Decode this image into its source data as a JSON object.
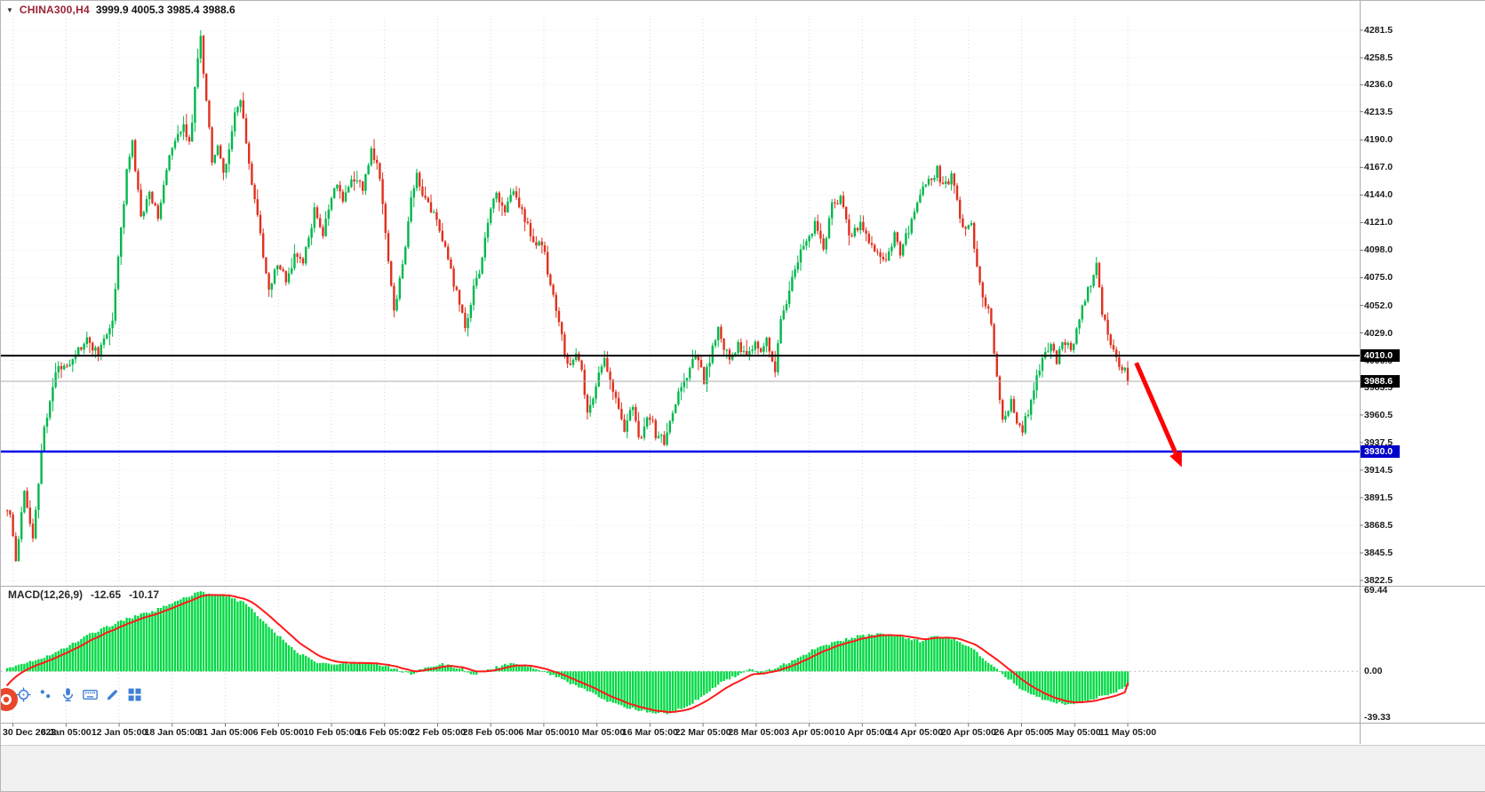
{
  "header": {
    "dropdown_glyph": "▼",
    "symbol_label": "CHINA300,H4",
    "ohlc_text": "3999.9 4005.3 3985.4 3988.6"
  },
  "macd_panel": {
    "label": "MACD(12,26,9)",
    "macd_value": "-12.65",
    "signal_value": "-10.17"
  },
  "colors": {
    "up": "#00b84c",
    "down": "#e0311f",
    "hist": "#00d944",
    "signal": "#ff1a1a",
    "grid": "#d8d8d8",
    "grid_h": "#ededed",
    "axis_text": "#1c1c1c",
    "arrow": "#ff0000",
    "icon_blue": "#3f7fd6",
    "logo_orange": "#e8472b",
    "badge_black": "#000000",
    "badge_blue": "#0000cc"
  },
  "toolbar": {
    "icons": [
      "crosshair-icon",
      "dots-icon",
      "microphone-icon",
      "keyboard-icon",
      "marker-icon",
      "apps-grid-icon",
      "app-logo-icon"
    ]
  },
  "chart_data": {
    "type": "candlestick",
    "title": "CHINA300,H4",
    "symbol": "CHINA300",
    "timeframe": "H4",
    "ohlc_current": {
      "open": 3999.9,
      "high": 4005.3,
      "low": 3985.4,
      "close": 3988.6
    },
    "y_range": [
      3822.5,
      4281.5
    ],
    "y_ticks": [
      4281.5,
      4258.5,
      4236.0,
      4213.5,
      4190.0,
      4167.0,
      4144.0,
      4121.0,
      4098.0,
      4075.0,
      4052.0,
      4029.0,
      4006.0,
      3983.5,
      3960.5,
      3937.5,
      3914.5,
      3891.5,
      3868.5,
      3845.5,
      3822.5
    ],
    "x_labels": [
      "30 Dec 2022",
      "6 Jan 05:00",
      "12 Jan 05:00",
      "18 Jan 05:00",
      "31 Jan 05:00",
      "6 Feb 05:00",
      "10 Feb 05:00",
      "16 Feb 05:00",
      "22 Feb 05:00",
      "28 Feb 05:00",
      "6 Mar 05:00",
      "10 Mar 05:00",
      "16 Mar 05:00",
      "22 Mar 05:00",
      "28 Mar 05:00",
      "3 Apr 05:00",
      "10 Apr 05:00",
      "14 Apr 05:00",
      "20 Apr 05:00",
      "26 Apr 05:00",
      "5 May 05:00",
      "11 May 05:00"
    ],
    "bars_total": 395,
    "price_anchors": [
      [
        1,
        3880
      ],
      [
        3,
        3840
      ],
      [
        6,
        3900
      ],
      [
        9,
        3858
      ],
      [
        13,
        3950
      ],
      [
        17,
        3996
      ],
      [
        22,
        4006
      ],
      [
        28,
        4022
      ],
      [
        32,
        4012
      ],
      [
        37,
        4040
      ],
      [
        42,
        4165
      ],
      [
        44,
        4186
      ],
      [
        47,
        4125
      ],
      [
        50,
        4146
      ],
      [
        53,
        4128
      ],
      [
        57,
        4175
      ],
      [
        62,
        4205
      ],
      [
        64,
        4185
      ],
      [
        68,
        4278
      ],
      [
        69,
        4248
      ],
      [
        72,
        4175
      ],
      [
        74,
        4186
      ],
      [
        76,
        4160
      ],
      [
        80,
        4210
      ],
      [
        82,
        4222
      ],
      [
        85,
        4170
      ],
      [
        89,
        4110
      ],
      [
        92,
        4062
      ],
      [
        95,
        4088
      ],
      [
        98,
        4072
      ],
      [
        101,
        4092
      ],
      [
        104,
        4088
      ],
      [
        108,
        4130
      ],
      [
        111,
        4112
      ],
      [
        114,
        4142
      ],
      [
        116,
        4152
      ],
      [
        118,
        4138
      ],
      [
        121,
        4158
      ],
      [
        125,
        4150
      ],
      [
        128,
        4182
      ],
      [
        131,
        4160
      ],
      [
        133,
        4110
      ],
      [
        136,
        4048
      ],
      [
        139,
        4085
      ],
      [
        142,
        4140
      ],
      [
        144,
        4162
      ],
      [
        147,
        4140
      ],
      [
        151,
        4125
      ],
      [
        154,
        4098
      ],
      [
        158,
        4062
      ],
      [
        161,
        4032
      ],
      [
        164,
        4065
      ],
      [
        167,
        4090
      ],
      [
        170,
        4135
      ],
      [
        172,
        4145
      ],
      [
        175,
        4130
      ],
      [
        177,
        4148
      ],
      [
        179,
        4140
      ],
      [
        182,
        4125
      ],
      [
        186,
        4098
      ],
      [
        188,
        4105
      ],
      [
        190,
        4080
      ],
      [
        192,
        4060
      ],
      [
        195,
        4025
      ],
      [
        197,
        4000
      ],
      [
        200,
        4015
      ],
      [
        202,
        3995
      ],
      [
        204,
        3960
      ],
      [
        207,
        3985
      ],
      [
        210,
        4010
      ],
      [
        212,
        3990
      ],
      [
        215,
        3965
      ],
      [
        217,
        3950
      ],
      [
        220,
        3970
      ],
      [
        222,
        3940
      ],
      [
        226,
        3960
      ],
      [
        228,
        3945
      ],
      [
        231,
        3938
      ],
      [
        234,
        3965
      ],
      [
        237,
        3985
      ],
      [
        239,
        3995
      ],
      [
        242,
        4010
      ],
      [
        245,
        3990
      ],
      [
        248,
        4015
      ],
      [
        250,
        4030
      ],
      [
        254,
        4005
      ],
      [
        257,
        4018
      ],
      [
        260,
        4008
      ],
      [
        263,
        4022
      ],
      [
        265,
        4012
      ],
      [
        267,
        4025
      ],
      [
        270,
        4000
      ],
      [
        272,
        4040
      ],
      [
        275,
        4065
      ],
      [
        278,
        4090
      ],
      [
        281,
        4105
      ],
      [
        284,
        4120
      ],
      [
        287,
        4100
      ],
      [
        290,
        4135
      ],
      [
        293,
        4140
      ],
      [
        296,
        4110
      ],
      [
        300,
        4120
      ],
      [
        303,
        4105
      ],
      [
        306,
        4095
      ],
      [
        309,
        4090
      ],
      [
        312,
        4110
      ],
      [
        314,
        4095
      ],
      [
        317,
        4115
      ],
      [
        320,
        4140
      ],
      [
        324,
        4155
      ],
      [
        327,
        4165
      ],
      [
        329,
        4150
      ],
      [
        332,
        4160
      ],
      [
        334,
        4140
      ],
      [
        336,
        4115
      ],
      [
        339,
        4120
      ],
      [
        341,
        4085
      ],
      [
        343,
        4060
      ],
      [
        346,
        4040
      ],
      [
        348,
        3990
      ],
      [
        350,
        3955
      ],
      [
        353,
        3970
      ],
      [
        355,
        3955
      ],
      [
        357,
        3948
      ],
      [
        360,
        3972
      ],
      [
        362,
        3990
      ],
      [
        364,
        4010
      ],
      [
        367,
        4020
      ],
      [
        369,
        4005
      ],
      [
        371,
        4025
      ],
      [
        374,
        4015
      ],
      [
        376,
        4030
      ],
      [
        378,
        4050
      ],
      [
        381,
        4070
      ],
      [
        383,
        4090
      ],
      [
        385,
        4045
      ],
      [
        388,
        4020
      ],
      [
        390,
        4005
      ],
      [
        392,
        3995
      ],
      [
        394,
        3988.6
      ]
    ],
    "macd": {
      "params": "12,26,9",
      "ticks": [
        69.44,
        0,
        -39.33
      ],
      "current": {
        "macd": -12.65,
        "signal": -10.17
      },
      "anchors": [
        [
          0,
          2
        ],
        [
          8,
          8
        ],
        [
          17,
          16
        ],
        [
          30,
          33
        ],
        [
          42,
          45
        ],
        [
          52,
          52
        ],
        [
          61,
          62
        ],
        [
          68,
          68
        ],
        [
          76,
          65
        ],
        [
          84,
          58
        ],
        [
          92,
          38
        ],
        [
          101,
          18
        ],
        [
          108,
          8
        ],
        [
          114,
          6
        ],
        [
          125,
          7
        ],
        [
          131,
          6
        ],
        [
          136,
          2
        ],
        [
          142,
          -2
        ],
        [
          147,
          3
        ],
        [
          153,
          6
        ],
        [
          159,
          3
        ],
        [
          164,
          -3
        ],
        [
          170,
          2
        ],
        [
          177,
          7
        ],
        [
          183,
          5
        ],
        [
          189,
          0
        ],
        [
          196,
          -8
        ],
        [
          202,
          -14
        ],
        [
          208,
          -22
        ],
        [
          216,
          -30
        ],
        [
          224,
          -34
        ],
        [
          232,
          -36
        ],
        [
          239,
          -30
        ],
        [
          245,
          -20
        ],
        [
          251,
          -10
        ],
        [
          256,
          -4
        ],
        [
          261,
          2
        ],
        [
          265,
          -2
        ],
        [
          270,
          3
        ],
        [
          277,
          10
        ],
        [
          283,
          18
        ],
        [
          291,
          25
        ],
        [
          299,
          30
        ],
        [
          307,
          32
        ],
        [
          314,
          30
        ],
        [
          321,
          26
        ],
        [
          327,
          30
        ],
        [
          333,
          28
        ],
        [
          340,
          18
        ],
        [
          346,
          6
        ],
        [
          351,
          -4
        ],
        [
          357,
          -16
        ],
        [
          365,
          -25
        ],
        [
          373,
          -28
        ],
        [
          381,
          -24
        ],
        [
          389,
          -18
        ],
        [
          394,
          -12.65
        ]
      ]
    },
    "horizontal_lines": [
      {
        "name": "resistance-line-badge",
        "price": 4010.0,
        "label": "4010.0",
        "color": "#000000",
        "width": 2,
        "badge": "#000000"
      },
      {
        "name": "bid-price-badge",
        "price": 3988.6,
        "label": "3988.6",
        "color": "#ababab",
        "width": 1,
        "badge": "#000000"
      },
      {
        "name": "support-line-badge",
        "price": 3930.0,
        "label": "3930.0",
        "color": "#0000e6",
        "width": 2.5,
        "badge": "#0000cc"
      }
    ],
    "arrow": {
      "from": {
        "bar": 397,
        "price": 4004
      },
      "to": {
        "bar": 413,
        "price": 3917
      },
      "color": "#ff0000"
    }
  }
}
